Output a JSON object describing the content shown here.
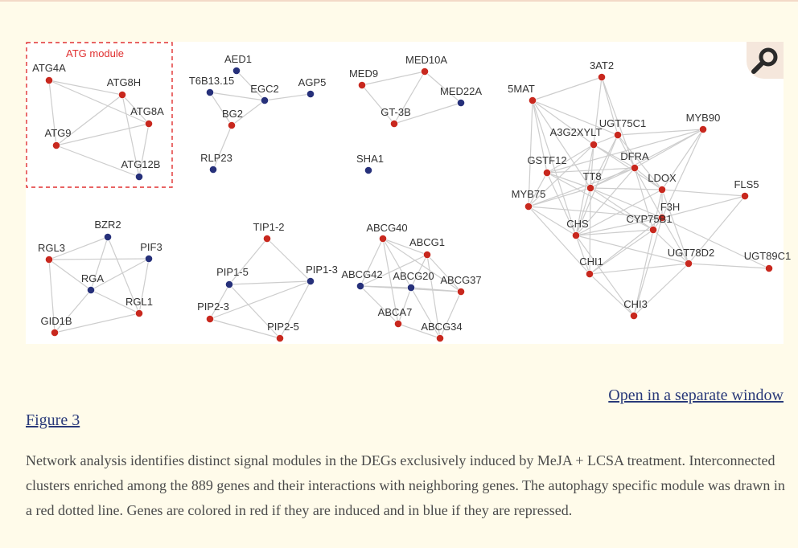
{
  "figure": {
    "module_label": "ATG module",
    "colors": {
      "induced": "#c8281e",
      "repressed": "#26307a",
      "edge": "#cdcdcd",
      "module_border": "#e03030",
      "label": "#333333"
    },
    "nodes": [
      {
        "id": "ATG4A",
        "label": "ATG4A",
        "status": "induced"
      },
      {
        "id": "ATG8H",
        "label": "ATG8H",
        "status": "induced"
      },
      {
        "id": "ATG8A",
        "label": "ATG8A",
        "status": "induced"
      },
      {
        "id": "ATG9",
        "label": "ATG9",
        "status": "induced"
      },
      {
        "id": "ATG12B",
        "label": "ATG12B",
        "status": "repressed"
      },
      {
        "id": "AED1",
        "label": "AED1",
        "status": "repressed"
      },
      {
        "id": "T6B13.15",
        "label": "T6B13.15",
        "status": "repressed"
      },
      {
        "id": "EGC2",
        "label": "EGC2",
        "status": "repressed"
      },
      {
        "id": "AGP5",
        "label": "AGP5",
        "status": "repressed"
      },
      {
        "id": "BG2",
        "label": "BG2",
        "status": "induced"
      },
      {
        "id": "RLP23",
        "label": "RLP23",
        "status": "repressed"
      },
      {
        "id": "MED10A",
        "label": "MED10A",
        "status": "induced"
      },
      {
        "id": "MED9",
        "label": "MED9",
        "status": "induced"
      },
      {
        "id": "MED22A",
        "label": "MED22A",
        "status": "repressed"
      },
      {
        "id": "GT-3B",
        "label": "GT-3B",
        "status": "induced"
      },
      {
        "id": "SHA1",
        "label": "SHA1",
        "status": "repressed"
      },
      {
        "id": "3AT2",
        "label": "3AT2",
        "status": "induced"
      },
      {
        "id": "5MAT",
        "label": "5MAT",
        "status": "induced"
      },
      {
        "id": "UGT75C1",
        "label": "UGT75C1",
        "status": "induced"
      },
      {
        "id": "MYB90",
        "label": "MYB90",
        "status": "induced"
      },
      {
        "id": "A3G2XYLT",
        "label": "A3G2XYLT",
        "status": "induced"
      },
      {
        "id": "GSTF12",
        "label": "GSTF12",
        "status": "induced"
      },
      {
        "id": "DFRA",
        "label": "DFRA",
        "status": "induced"
      },
      {
        "id": "TT8",
        "label": "TT8",
        "status": "induced"
      },
      {
        "id": "LDOX",
        "label": "LDOX",
        "status": "induced"
      },
      {
        "id": "FLS5",
        "label": "FLS5",
        "status": "induced"
      },
      {
        "id": "MYB75",
        "label": "MYB75",
        "status": "induced"
      },
      {
        "id": "F3H",
        "label": "F3H",
        "status": "induced"
      },
      {
        "id": "CHS",
        "label": "CHS",
        "status": "induced"
      },
      {
        "id": "CYP75B1",
        "label": "CYP75B1",
        "status": "induced"
      },
      {
        "id": "CHI1",
        "label": "CHI1",
        "status": "induced"
      },
      {
        "id": "UGT78D2",
        "label": "UGT78D2",
        "status": "induced"
      },
      {
        "id": "UGT89C1",
        "label": "UGT89C1",
        "status": "induced"
      },
      {
        "id": "CHI3",
        "label": "CHI3",
        "status": "induced"
      },
      {
        "id": "BZR2",
        "label": "BZR2",
        "status": "repressed"
      },
      {
        "id": "RGL3",
        "label": "RGL3",
        "status": "induced"
      },
      {
        "id": "PIF3",
        "label": "PIF3",
        "status": "repressed"
      },
      {
        "id": "RGA",
        "label": "RGA",
        "status": "repressed"
      },
      {
        "id": "RGL1",
        "label": "RGL1",
        "status": "induced"
      },
      {
        "id": "GID1B",
        "label": "GID1B",
        "status": "induced"
      },
      {
        "id": "TIP1-2",
        "label": "TIP1-2",
        "status": "induced"
      },
      {
        "id": "PIP1-5",
        "label": "PIP1-5",
        "status": "repressed"
      },
      {
        "id": "PIP1-3",
        "label": "PIP1-3",
        "status": "repressed"
      },
      {
        "id": "PIP2-3",
        "label": "PIP2-3",
        "status": "induced"
      },
      {
        "id": "PIP2-5",
        "label": "PIP2-5",
        "status": "induced"
      },
      {
        "id": "ABCG40",
        "label": "ABCG40",
        "status": "induced"
      },
      {
        "id": "ABCG1",
        "label": "ABCG1",
        "status": "induced"
      },
      {
        "id": "ABCG42",
        "label": "ABCG42",
        "status": "repressed"
      },
      {
        "id": "ABCG20",
        "label": "ABCG20",
        "status": "repressed"
      },
      {
        "id": "ABCG37",
        "label": "ABCG37",
        "status": "induced"
      },
      {
        "id": "ABCA7",
        "label": "ABCA7",
        "status": "induced"
      },
      {
        "id": "ABCG34",
        "label": "ABCG34",
        "status": "induced"
      }
    ],
    "edges": [
      [
        "ATG4A",
        "ATG8H"
      ],
      [
        "ATG4A",
        "ATG9"
      ],
      [
        "ATG4A",
        "ATG8A"
      ],
      [
        "ATG8H",
        "ATG9"
      ],
      [
        "ATG8H",
        "ATG8A"
      ],
      [
        "ATG8H",
        "ATG12B"
      ],
      [
        "ATG9",
        "ATG8A"
      ],
      [
        "ATG9",
        "ATG12B"
      ],
      [
        "ATG8A",
        "ATG12B"
      ],
      [
        "T6B13.15",
        "EGC2"
      ],
      [
        "AED1",
        "EGC2"
      ],
      [
        "EGC2",
        "AGP5"
      ],
      [
        "EGC2",
        "BG2"
      ],
      [
        "BG2",
        "RLP23"
      ],
      [
        "T6B13.15",
        "BG2"
      ],
      [
        "MED9",
        "MED10A"
      ],
      [
        "MED10A",
        "MED22A"
      ],
      [
        "MED9",
        "GT-3B"
      ],
      [
        "MED10A",
        "GT-3B"
      ],
      [
        "GT-3B",
        "MED22A"
      ],
      [
        "BZR2",
        "RGL3"
      ],
      [
        "BZR2",
        "RGA"
      ],
      [
        "BZR2",
        "RGL1"
      ],
      [
        "RGL3",
        "RGA"
      ],
      [
        "RGL3",
        "GID1B"
      ],
      [
        "RGL3",
        "PIF3"
      ],
      [
        "RGA",
        "PIF3"
      ],
      [
        "RGA",
        "RGL1"
      ],
      [
        "PIF3",
        "RGL1"
      ],
      [
        "GID1B",
        "RGL1"
      ],
      [
        "RGA",
        "GID1B"
      ],
      [
        "TIP1-2",
        "PIP1-5"
      ],
      [
        "TIP1-2",
        "PIP1-3"
      ],
      [
        "PIP1-5",
        "PIP1-3"
      ],
      [
        "PIP1-5",
        "PIP2-3"
      ],
      [
        "PIP1-5",
        "PIP2-5"
      ],
      [
        "PIP1-3",
        "PIP2-3"
      ],
      [
        "PIP2-3",
        "PIP2-5"
      ],
      [
        "PIP1-3",
        "PIP2-5"
      ],
      [
        "ABCG40",
        "ABCG1"
      ],
      [
        "ABCG40",
        "ABCG42"
      ],
      [
        "ABCG40",
        "ABCG20"
      ],
      [
        "ABCG40",
        "ABCG37"
      ],
      [
        "ABCG40",
        "ABCA7"
      ],
      [
        "ABCG1",
        "ABCG42"
      ],
      [
        "ABCG1",
        "ABCG20"
      ],
      [
        "ABCG1",
        "ABCG37"
      ],
      [
        "ABCG1",
        "ABCG34"
      ],
      [
        "ABCG42",
        "ABCG20"
      ],
      [
        "ABCG42",
        "ABCA7"
      ],
      [
        "ABCG20",
        "ABCG37"
      ],
      [
        "ABCG20",
        "ABCA7"
      ],
      [
        "ABCG20",
        "ABCG34"
      ],
      [
        "ABCA7",
        "ABCG34"
      ],
      [
        "ABCG37",
        "ABCG34"
      ],
      [
        "ABCG42",
        "ABCG37"
      ],
      [
        "3AT2",
        "5MAT"
      ],
      [
        "3AT2",
        "A3G2XYLT"
      ],
      [
        "3AT2",
        "UGT75C1"
      ],
      [
        "3AT2",
        "DFRA"
      ],
      [
        "5MAT",
        "A3G2XYLT"
      ],
      [
        "5MAT",
        "GSTF12"
      ],
      [
        "5MAT",
        "TT8"
      ],
      [
        "5MAT",
        "MYB75"
      ],
      [
        "5MAT",
        "CHS"
      ],
      [
        "5MAT",
        "UGT75C1"
      ],
      [
        "UGT75C1",
        "MYB90"
      ],
      [
        "UGT75C1",
        "A3G2XYLT"
      ],
      [
        "UGT75C1",
        "DFRA"
      ],
      [
        "UGT75C1",
        "TT8"
      ],
      [
        "UGT75C1",
        "CHS"
      ],
      [
        "UGT75C1",
        "LDOX"
      ],
      [
        "MYB90",
        "DFRA"
      ],
      [
        "MYB90",
        "LDOX"
      ],
      [
        "MYB90",
        "TT8"
      ],
      [
        "MYB90",
        "F3H"
      ],
      [
        "MYB90",
        "GSTF12"
      ],
      [
        "A3G2XYLT",
        "GSTF12"
      ],
      [
        "A3G2XYLT",
        "DFRA"
      ],
      [
        "A3G2XYLT",
        "TT8"
      ],
      [
        "A3G2XYLT",
        "MYB75"
      ],
      [
        "A3G2XYLT",
        "CHS"
      ],
      [
        "A3G2XYLT",
        "LDOX"
      ],
      [
        "GSTF12",
        "TT8"
      ],
      [
        "GSTF12",
        "MYB75"
      ],
      [
        "GSTF12",
        "CHS"
      ],
      [
        "GSTF12",
        "DFRA"
      ],
      [
        "GSTF12",
        "CYP75B1"
      ],
      [
        "DFRA",
        "TT8"
      ],
      [
        "DFRA",
        "LDOX"
      ],
      [
        "DFRA",
        "F3H"
      ],
      [
        "DFRA",
        "CHS"
      ],
      [
        "DFRA",
        "CYP75B1"
      ],
      [
        "DFRA",
        "MYB75"
      ],
      [
        "TT8",
        "LDOX"
      ],
      [
        "TT8",
        "MYB75"
      ],
      [
        "TT8",
        "CHS"
      ],
      [
        "TT8",
        "F3H"
      ],
      [
        "TT8",
        "CYP75B1"
      ],
      [
        "TT8",
        "CHI1"
      ],
      [
        "LDOX",
        "FLS5"
      ],
      [
        "LDOX",
        "F3H"
      ],
      [
        "LDOX",
        "CHS"
      ],
      [
        "LDOX",
        "CYP75B1"
      ],
      [
        "LDOX",
        "UGT78D2"
      ],
      [
        "FLS5",
        "F3H"
      ],
      [
        "FLS5",
        "UGT78D2"
      ],
      [
        "MYB75",
        "CHS"
      ],
      [
        "MYB75",
        "CHI1"
      ],
      [
        "MYB75",
        "F3H"
      ],
      [
        "F3H",
        "CHS"
      ],
      [
        "F3H",
        "CYP75B1"
      ],
      [
        "F3H",
        "UGT78D2"
      ],
      [
        "F3H",
        "CHI1"
      ],
      [
        "F3H",
        "UGT89C1"
      ],
      [
        "F3H",
        "CHI3"
      ],
      [
        "CHS",
        "CYP75B1"
      ],
      [
        "CHS",
        "CHI1"
      ],
      [
        "CHS",
        "UGT78D2"
      ],
      [
        "CHS",
        "CHI3"
      ],
      [
        "CYP75B1",
        "CHI1"
      ],
      [
        "CYP75B1",
        "UGT78D2"
      ],
      [
        "CHI1",
        "UGT78D2"
      ],
      [
        "CHI1",
        "CHI3"
      ],
      [
        "UGT78D2",
        "UGT89C1"
      ],
      [
        "UGT78D2",
        "CHI3"
      ],
      [
        "CYP75B1",
        "CHI3"
      ]
    ]
  },
  "links": {
    "open_window": "Open in a separate window",
    "figure_label": "Figure 3"
  },
  "caption": "Network analysis identifies distinct signal modules in the DEGs exclusively induced by MeJA + LCSA treatment. Interconnected clusters enriched among the 889 genes and their interactions with neighboring genes. The autophagy specific module was drawn in a red dotted line. Genes are colored in red if they are induced and in blue if they are repressed.",
  "icons": {
    "zoom": "magnifier-icon"
  }
}
